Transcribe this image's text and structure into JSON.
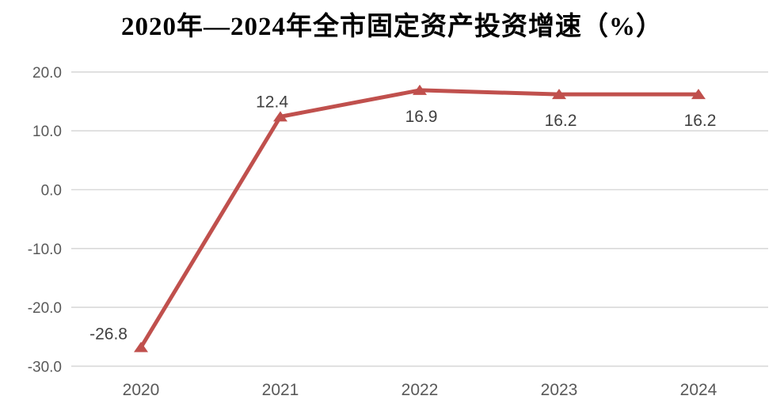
{
  "title": "2020年—2024年全市固定资产投资增速（%）",
  "chart_data": {
    "type": "line",
    "title": "2020年—2024年全市固定资产投资增速（%）",
    "categories": [
      "2020",
      "2021",
      "2022",
      "2023",
      "2024"
    ],
    "series": [
      {
        "name": "全市固定资产投资增速",
        "values": [
          -26.8,
          12.4,
          16.9,
          16.2,
          16.2
        ],
        "marker": "triangle-up"
      }
    ],
    "data_labels": [
      "-26.8",
      "12.4",
      "16.9",
      "16.2",
      "16.2"
    ],
    "data_label_positions": [
      "left",
      "above",
      "below",
      "below",
      "below"
    ],
    "xlabel": "",
    "ylabel": "",
    "ylim": [
      -30,
      20
    ],
    "y_ticks": [
      20,
      10,
      0,
      -10,
      -20,
      -30
    ],
    "y_tick_labels": [
      "20.0",
      "10.0",
      "0.0",
      "-10.0",
      "-20.0",
      "-30.0"
    ],
    "grid": true,
    "legend_position": "none",
    "colors": {
      "line": "#c0504d",
      "marker": "#c0504d",
      "grid": "#d9d9d9",
      "axis_text": "#595959",
      "data_label_text": "#404040",
      "title_text": "#000000",
      "background": "#ffffff"
    }
  }
}
